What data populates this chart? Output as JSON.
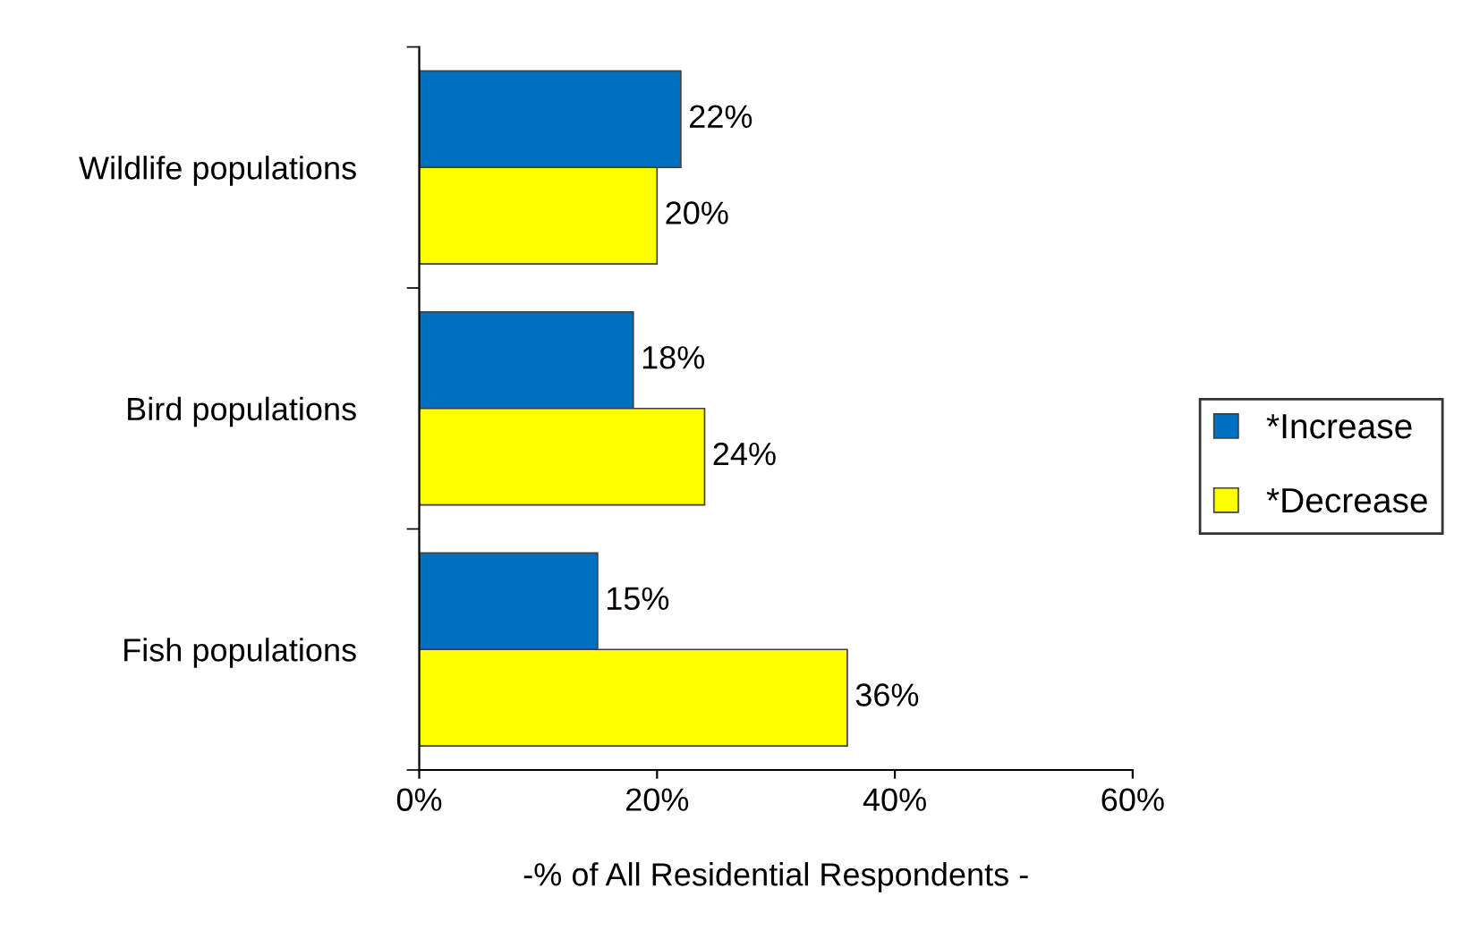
{
  "chart_data": {
    "type": "bar",
    "orientation": "horizontal",
    "categories": [
      "Wildlife populations",
      "Bird populations",
      "Fish populations"
    ],
    "series": [
      {
        "name": "*Increase",
        "color": "#0070c0",
        "values": [
          22,
          18,
          15
        ],
        "value_labels": [
          "22%",
          "18%",
          "15%"
        ]
      },
      {
        "name": "*Decrease",
        "color": "#ffff00",
        "values": [
          20,
          24,
          36
        ],
        "value_labels": [
          "20%",
          "24%",
          "36%"
        ]
      }
    ],
    "xlim": [
      0,
      60
    ],
    "xticks": [
      {
        "value": 0,
        "label": "0%"
      },
      {
        "value": 20,
        "label": "20%"
      },
      {
        "value": 40,
        "label": "40%"
      },
      {
        "value": 60,
        "label": "60%"
      }
    ],
    "xlabel": "-% of All Residential Respondents -",
    "legend": "right",
    "grid": false
  }
}
